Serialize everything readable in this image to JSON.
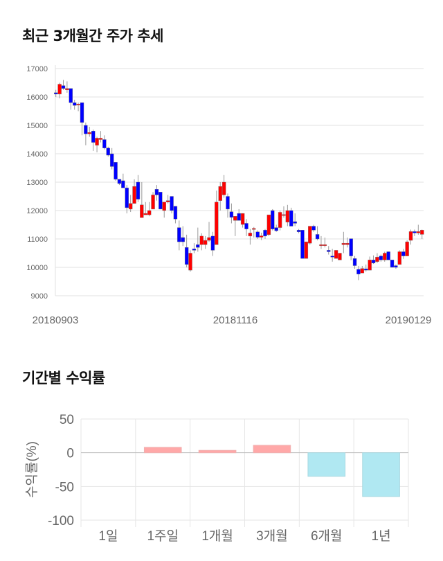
{
  "section1_title": "최근 3개월간 주가 추세",
  "section2_title": "기간별 수익률",
  "colors": {
    "up": "#ff0000",
    "down": "#0000ff",
    "pos_bar": "#ffa8a8",
    "neg_bar": "#b0e8f2"
  },
  "chart_data": [
    {
      "type": "candlestick",
      "title": "최근 3개월간 주가 추세",
      "ylim": [
        9000,
        17000
      ],
      "yticks": [
        "9000",
        "10000",
        "11000",
        "12000",
        "13000",
        "14000",
        "15000",
        "16000",
        "17000"
      ],
      "xticks": [
        "20180903",
        "20181116",
        "20190129"
      ],
      "ohlc": [
        [
          16150,
          16250,
          16000,
          16100
        ],
        [
          16100,
          16500,
          15950,
          16450
        ],
        [
          16400,
          16600,
          16250,
          16300
        ],
        [
          16250,
          16550,
          16150,
          16300
        ],
        [
          16300,
          16300,
          15550,
          15800
        ],
        [
          15800,
          15900,
          15550,
          15700
        ],
        [
          15750,
          15800,
          15500,
          15750
        ],
        [
          15800,
          15800,
          14650,
          15100
        ],
        [
          15000,
          15100,
          14300,
          14700
        ],
        [
          14700,
          14950,
          14600,
          14750
        ],
        [
          14800,
          14850,
          14100,
          14400
        ],
        [
          14300,
          14600,
          14050,
          14550
        ],
        [
          14500,
          14800,
          14400,
          14550
        ],
        [
          14500,
          14650,
          14150,
          14200
        ],
        [
          14200,
          14250,
          13900,
          13950
        ],
        [
          14000,
          14200,
          13450,
          13550
        ],
        [
          13700,
          13700,
          13050,
          13100
        ],
        [
          13100,
          13100,
          12900,
          12950
        ],
        [
          13050,
          13300,
          12800,
          12800
        ],
        [
          12800,
          12900,
          11900,
          12100
        ],
        [
          12050,
          12550,
          11950,
          12250
        ],
        [
          12250,
          13100,
          12250,
          12850
        ],
        [
          13000,
          13250,
          12300,
          12400
        ],
        [
          11750,
          13000,
          11750,
          12200
        ],
        [
          11850,
          12300,
          11850,
          11900
        ],
        [
          11850,
          12300,
          11800,
          12000
        ],
        [
          12050,
          12650,
          12050,
          12550
        ],
        [
          12750,
          12900,
          12350,
          12550
        ],
        [
          12650,
          12650,
          12050,
          12050
        ],
        [
          12000,
          12300,
          11750,
          12300
        ],
        [
          12300,
          12550,
          12250,
          12350
        ],
        [
          12500,
          12500,
          11900,
          12000
        ],
        [
          12150,
          12150,
          11550,
          11700
        ],
        [
          11400,
          11650,
          10600,
          10900
        ],
        [
          11050,
          11450,
          10750,
          10900
        ],
        [
          10700,
          11150,
          10000,
          10100
        ],
        [
          9900,
          10600,
          9850,
          10500
        ],
        [
          10650,
          10850,
          10500,
          10600
        ],
        [
          10800,
          11400,
          10550,
          10700
        ],
        [
          10800,
          11200,
          10600,
          11100
        ],
        [
          10800,
          11100,
          10650,
          10950
        ],
        [
          10950,
          11600,
          10900,
          11050
        ],
        [
          11100,
          11250,
          10400,
          10600
        ],
        [
          10800,
          12700,
          10800,
          12300
        ],
        [
          12350,
          13000,
          12000,
          12850
        ],
        [
          12550,
          13250,
          12450,
          13000
        ],
        [
          12500,
          12600,
          11750,
          12050
        ],
        [
          11960,
          12250,
          11550,
          11760
        ],
        [
          11650,
          11800,
          11100,
          11800
        ],
        [
          11900,
          12050,
          11650,
          11650
        ],
        [
          11510,
          11900,
          11400,
          11900
        ],
        [
          11550,
          11700,
          11100,
          11350
        ],
        [
          11100,
          11350,
          10800,
          11210
        ],
        [
          11370,
          11420,
          11050,
          11370
        ],
        [
          11250,
          11300,
          11000,
          11060
        ],
        [
          11060,
          11220,
          10960,
          11110
        ],
        [
          11310,
          11350,
          11000,
          11100
        ],
        [
          11150,
          11850,
          11100,
          11850
        ],
        [
          12000,
          12050,
          11300,
          11350
        ],
        [
          11400,
          11500,
          11250,
          11290
        ],
        [
          11400,
          12000,
          11300,
          11940
        ],
        [
          11860,
          12150,
          11750,
          11860
        ],
        [
          11590,
          12200,
          11450,
          12000
        ],
        [
          12000,
          12100,
          11450,
          11450
        ],
        [
          11610,
          11900,
          11450,
          11550
        ],
        [
          11310,
          11350,
          11200,
          11250
        ],
        [
          11310,
          11310,
          10310,
          10310
        ],
        [
          10310,
          10900,
          10310,
          10900
        ],
        [
          10850,
          11450,
          10800,
          11450
        ],
        [
          11450,
          11500,
          11250,
          11310
        ],
        [
          11160,
          11450,
          10950,
          11000
        ],
        [
          10800,
          11100,
          10650,
          10800
        ],
        [
          10800,
          11050,
          10700,
          10800
        ],
        [
          10600,
          10750,
          10450,
          10550
        ],
        [
          10400,
          10650,
          10200,
          10360
        ],
        [
          10310,
          10600,
          10310,
          10600
        ],
        [
          10260,
          10500,
          10260,
          10500
        ],
        [
          10800,
          11250,
          10500,
          10850
        ],
        [
          10800,
          11050,
          10700,
          10850
        ],
        [
          11010,
          11010,
          10250,
          10400
        ],
        [
          10310,
          10400,
          9950,
          10060
        ],
        [
          9930,
          10050,
          9550,
          9760
        ],
        [
          9800,
          10050,
          9800,
          9960
        ],
        [
          9950,
          10100,
          9850,
          9900
        ],
        [
          9900,
          10380,
          9900,
          10260
        ],
        [
          10260,
          10420,
          10120,
          10150
        ],
        [
          10200,
          10500,
          10150,
          10360
        ],
        [
          10400,
          10450,
          10200,
          10260
        ],
        [
          10260,
          10550,
          10200,
          10500
        ],
        [
          10550,
          10550,
          10260,
          10260
        ],
        [
          10260,
          10260,
          10000,
          10000
        ],
        [
          10060,
          10100,
          9950,
          10000
        ],
        [
          10100,
          10600,
          10100,
          10550
        ],
        [
          10550,
          10650,
          10300,
          10400
        ],
        [
          10400,
          10950,
          10400,
          10900
        ],
        [
          10950,
          11330,
          10800,
          11260
        ],
        [
          11260,
          11330,
          11100,
          11210
        ],
        [
          11210,
          11500,
          11150,
          11260
        ],
        [
          11160,
          11330,
          11000,
          11310
        ]
      ]
    },
    {
      "type": "bar",
      "title": "기간별 수익률",
      "ylabel": "수익률(%)",
      "categories": [
        "1일",
        "1주일",
        "1개월",
        "3개월",
        "6개월",
        "1년"
      ],
      "values": [
        0,
        8,
        3.5,
        11,
        -35,
        -65
      ],
      "ylim": [
        -100,
        50
      ],
      "yticks": [
        "50",
        "0",
        "-50",
        "-100"
      ]
    }
  ]
}
